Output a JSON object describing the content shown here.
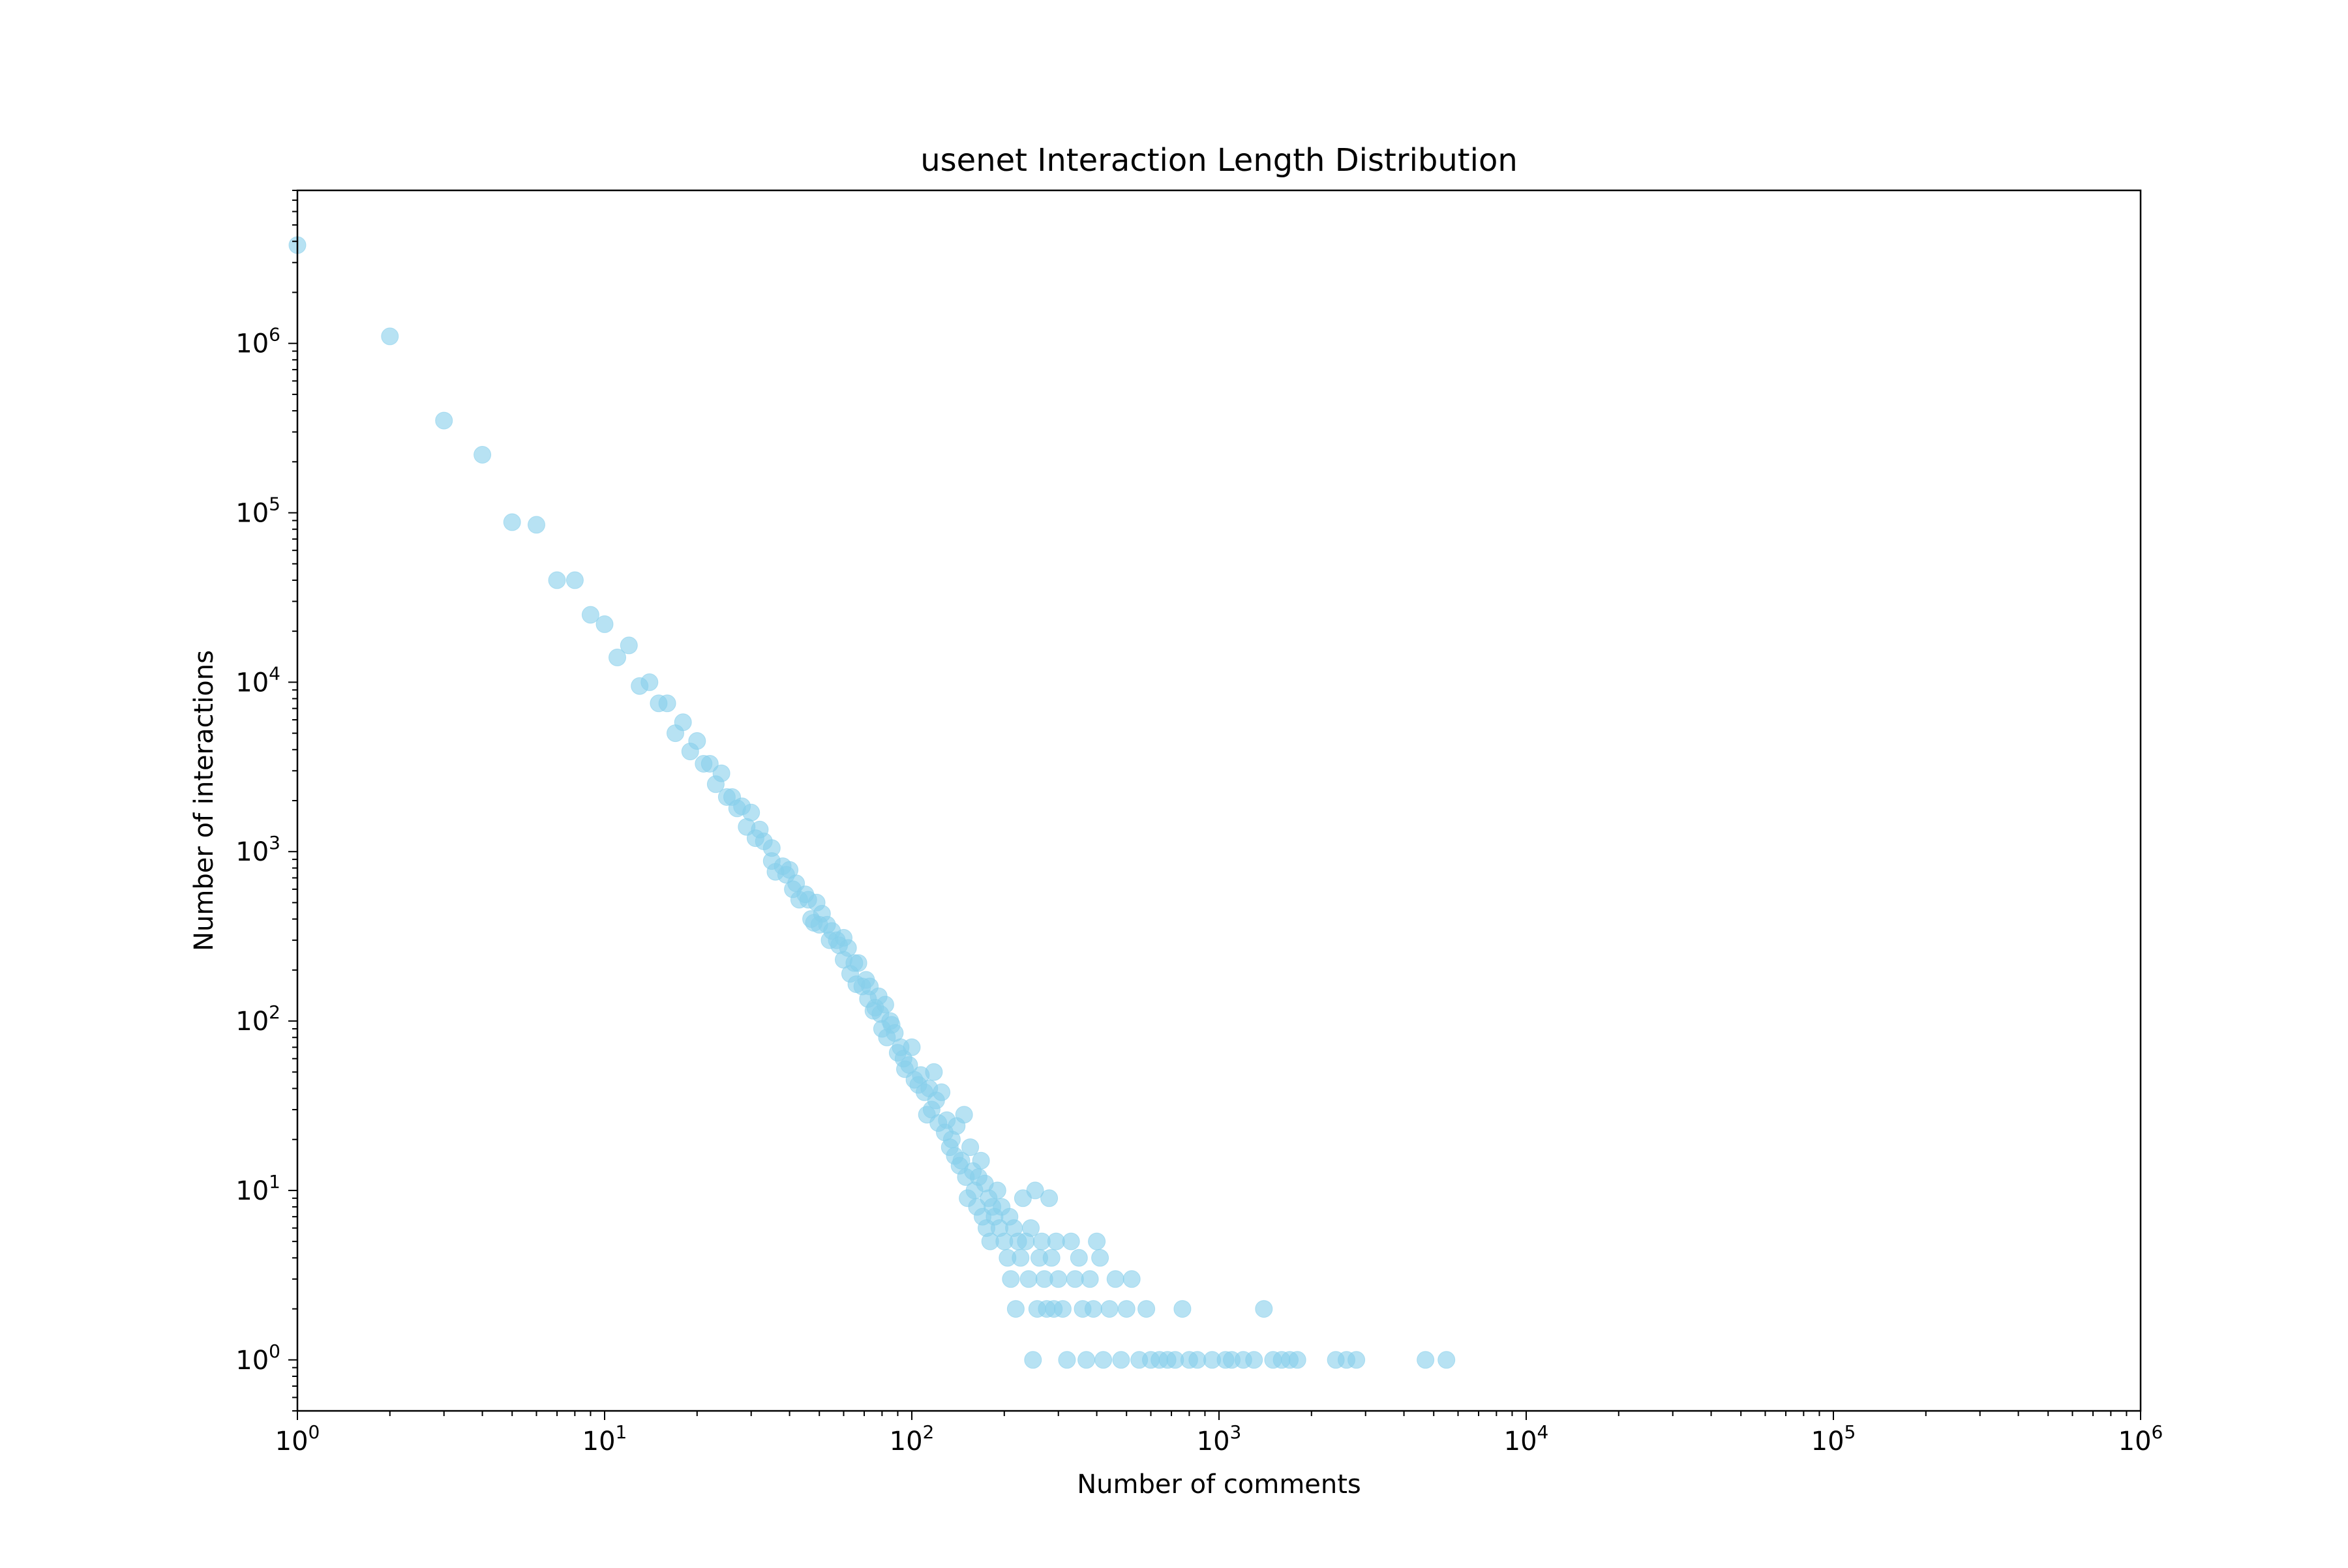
{
  "chart_data": {
    "type": "scatter",
    "title": "usenet Interaction Length Distribution",
    "xlabel": "Number of comments",
    "ylabel": "Number of interactions",
    "x_scale": "log",
    "y_scale": "log",
    "xlim": [
      1,
      1000000
    ],
    "ylim": [
      0.5,
      8000000
    ],
    "x_ticks": [
      {
        "value": 1,
        "label": "10",
        "exp": "0"
      },
      {
        "value": 10,
        "label": "10",
        "exp": "1"
      },
      {
        "value": 100,
        "label": "10",
        "exp": "2"
      },
      {
        "value": 1000,
        "label": "10",
        "exp": "3"
      },
      {
        "value": 10000,
        "label": "10",
        "exp": "4"
      },
      {
        "value": 100000,
        "label": "10",
        "exp": "5"
      },
      {
        "value": 1000000,
        "label": "10",
        "exp": "6"
      }
    ],
    "y_ticks": [
      {
        "value": 1,
        "label": "10",
        "exp": "0"
      },
      {
        "value": 10,
        "label": "10",
        "exp": "1"
      },
      {
        "value": 100,
        "label": "10",
        "exp": "2"
      },
      {
        "value": 1000,
        "label": "10",
        "exp": "3"
      },
      {
        "value": 10000,
        "label": "10",
        "exp": "4"
      },
      {
        "value": 100000,
        "label": "10",
        "exp": "5"
      },
      {
        "value": 1000000,
        "label": "10",
        "exp": "6"
      }
    ],
    "grid": false,
    "marker_color": "#87CEEB",
    "marker_alpha": 0.6,
    "points": [
      [
        1,
        3800000
      ],
      [
        2,
        1100000
      ],
      [
        3,
        350000
      ],
      [
        4,
        220000
      ],
      [
        5,
        88000
      ],
      [
        6,
        85000
      ],
      [
        7,
        40000
      ],
      [
        8,
        40000
      ],
      [
        9,
        25000
      ],
      [
        10,
        22000
      ],
      [
        11,
        14000
      ],
      [
        12,
        16500
      ],
      [
        13,
        9500
      ],
      [
        14,
        10000
      ],
      [
        15,
        7500
      ],
      [
        16,
        7500
      ],
      [
        17,
        5000
      ],
      [
        18,
        5800
      ],
      [
        19,
        3900
      ],
      [
        20,
        4500
      ],
      [
        21,
        3300
      ],
      [
        22,
        3300
      ],
      [
        23,
        2500
      ],
      [
        24,
        2900
      ],
      [
        25,
        2100
      ],
      [
        26,
        2100
      ],
      [
        27,
        1800
      ],
      [
        28,
        1850
      ],
      [
        29,
        1400
      ],
      [
        30,
        1700
      ],
      [
        31,
        1200
      ],
      [
        32,
        1350
      ],
      [
        33,
        1150
      ],
      [
        35,
        1050
      ],
      [
        35,
        880
      ],
      [
        36,
        760
      ],
      [
        38,
        820
      ],
      [
        39,
        730
      ],
      [
        40,
        780
      ],
      [
        41,
        600
      ],
      [
        42,
        650
      ],
      [
        43,
        520
      ],
      [
        45,
        560
      ],
      [
        46,
        520
      ],
      [
        47,
        400
      ],
      [
        48,
        380
      ],
      [
        49,
        500
      ],
      [
        50,
        370
      ],
      [
        51,
        430
      ],
      [
        53,
        370
      ],
      [
        54,
        300
      ],
      [
        55,
        340
      ],
      [
        57,
        300
      ],
      [
        58,
        280
      ],
      [
        60,
        310
      ],
      [
        60,
        230
      ],
      [
        62,
        270
      ],
      [
        63,
        190
      ],
      [
        65,
        220
      ],
      [
        66,
        165
      ],
      [
        67,
        220
      ],
      [
        69,
        160
      ],
      [
        71,
        175
      ],
      [
        72,
        135
      ],
      [
        73,
        160
      ],
      [
        75,
        115
      ],
      [
        76,
        120
      ],
      [
        78,
        140
      ],
      [
        79,
        110
      ],
      [
        80,
        90
      ],
      [
        82,
        125
      ],
      [
        83,
        80
      ],
      [
        85,
        100
      ],
      [
        86,
        95
      ],
      [
        88,
        85
      ],
      [
        90,
        65
      ],
      [
        92,
        70
      ],
      [
        94,
        60
      ],
      [
        95,
        52
      ],
      [
        98,
        55
      ],
      [
        100,
        70
      ],
      [
        102,
        45
      ],
      [
        105,
        42
      ],
      [
        107,
        48
      ],
      [
        110,
        38
      ],
      [
        112,
        28
      ],
      [
        114,
        40
      ],
      [
        116,
        30
      ],
      [
        118,
        50
      ],
      [
        120,
        34
      ],
      [
        122,
        25
      ],
      [
        125,
        38
      ],
      [
        128,
        22
      ],
      [
        130,
        26
      ],
      [
        133,
        18
      ],
      [
        135,
        20
      ],
      [
        138,
        16
      ],
      [
        140,
        24
      ],
      [
        143,
        14
      ],
      [
        145,
        15
      ],
      [
        148,
        28
      ],
      [
        150,
        12
      ],
      [
        152,
        9
      ],
      [
        155,
        18
      ],
      [
        158,
        13
      ],
      [
        160,
        10
      ],
      [
        163,
        8
      ],
      [
        165,
        12
      ],
      [
        168,
        15
      ],
      [
        170,
        7
      ],
      [
        173,
        11
      ],
      [
        175,
        6
      ],
      [
        178,
        9
      ],
      [
        180,
        5
      ],
      [
        183,
        8
      ],
      [
        186,
        7
      ],
      [
        190,
        10
      ],
      [
        193,
        6
      ],
      [
        196,
        8
      ],
      [
        200,
        5
      ],
      [
        205,
        4
      ],
      [
        208,
        7
      ],
      [
        210,
        3
      ],
      [
        215,
        6
      ],
      [
        218,
        2
      ],
      [
        222,
        5
      ],
      [
        226,
        4
      ],
      [
        230,
        9
      ],
      [
        235,
        5
      ],
      [
        240,
        3
      ],
      [
        244,
        6
      ],
      [
        248,
        1
      ],
      [
        252,
        10
      ],
      [
        256,
        2
      ],
      [
        260,
        4
      ],
      [
        265,
        5
      ],
      [
        270,
        3
      ],
      [
        275,
        2
      ],
      [
        280,
        9
      ],
      [
        285,
        4
      ],
      [
        290,
        2
      ],
      [
        295,
        5
      ],
      [
        300,
        3
      ],
      [
        310,
        2
      ],
      [
        320,
        1
      ],
      [
        330,
        5
      ],
      [
        340,
        3
      ],
      [
        350,
        4
      ],
      [
        360,
        2
      ],
      [
        370,
        1
      ],
      [
        380,
        3
      ],
      [
        390,
        2
      ],
      [
        400,
        5
      ],
      [
        410,
        4
      ],
      [
        420,
        1
      ],
      [
        440,
        2
      ],
      [
        460,
        3
      ],
      [
        480,
        1
      ],
      [
        500,
        2
      ],
      [
        520,
        3
      ],
      [
        550,
        1
      ],
      [
        580,
        2
      ],
      [
        600,
        1
      ],
      [
        640,
        1
      ],
      [
        680,
        1
      ],
      [
        720,
        1
      ],
      [
        760,
        2
      ],
      [
        800,
        1
      ],
      [
        850,
        1
      ],
      [
        950,
        1
      ],
      [
        1050,
        1
      ],
      [
        1100,
        1
      ],
      [
        1200,
        1
      ],
      [
        1300,
        1
      ],
      [
        1400,
        2
      ],
      [
        1500,
        1
      ],
      [
        1600,
        1
      ],
      [
        1700,
        1
      ],
      [
        1800,
        1
      ],
      [
        2400,
        1
      ],
      [
        2600,
        1
      ],
      [
        2800,
        1
      ],
      [
        4700,
        1
      ],
      [
        5500,
        1
      ]
    ]
  }
}
